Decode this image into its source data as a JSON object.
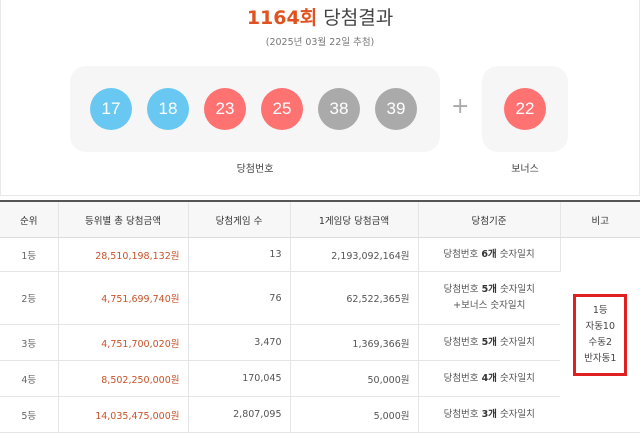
{
  "header": {
    "round": "1164회",
    "title": "당첨결과",
    "date": "(2025년 03월 22일 추첨)"
  },
  "balls": [
    {
      "number": "17",
      "color": "#69c8f2"
    },
    {
      "number": "18",
      "color": "#69c8f2"
    },
    {
      "number": "23",
      "color": "#ff7272"
    },
    {
      "number": "25",
      "color": "#ff7272"
    },
    {
      "number": "38",
      "color": "#aaaaaa"
    },
    {
      "number": "39",
      "color": "#aaaaaa"
    }
  ],
  "plus": "+",
  "bonus_ball": {
    "number": "22",
    "color": "#ff7272"
  },
  "labels": {
    "winning_numbers": "당첨번호",
    "bonus": "보너스"
  },
  "table": {
    "headers": [
      "순위",
      "등위별 총 당첨금액",
      "당첨게임 수",
      "1게임당 당첨금액",
      "당첨기준",
      "비고"
    ],
    "rows": [
      {
        "rank": "1등",
        "total": "28,510,198,132원",
        "games": "13",
        "per_game": "2,193,092,164원",
        "crit_pre": "당첨번호 ",
        "crit_bold": "6개",
        "crit_post": " 숫자일치",
        "crit_line2": ""
      },
      {
        "rank": "2등",
        "total": "4,751,699,740원",
        "games": "76",
        "per_game": "62,522,365원",
        "crit_pre": "당첨번호 ",
        "crit_bold": "5개",
        "crit_post": " 숫자일치",
        "crit_line2": "+보너스 숫자일치"
      },
      {
        "rank": "3등",
        "total": "4,751,700,020원",
        "games": "3,470",
        "per_game": "1,369,366원",
        "crit_pre": "당첨번호 ",
        "crit_bold": "5개",
        "crit_post": " 숫자일치",
        "crit_line2": ""
      },
      {
        "rank": "4등",
        "total": "8,502,250,000원",
        "games": "170,045",
        "per_game": "50,000원",
        "crit_pre": "당첨번호 ",
        "crit_bold": "4개",
        "crit_post": " 숫자일치",
        "crit_line2": ""
      },
      {
        "rank": "5등",
        "total": "14,035,475,000원",
        "games": "2,807,095",
        "per_game": "5,000원",
        "crit_pre": "당첨번호 ",
        "crit_bold": "3개",
        "crit_post": " 숫자일치",
        "crit_line2": ""
      }
    ],
    "note_lines": [
      "1등",
      "자동10",
      "수동2",
      "반자동1"
    ]
  }
}
